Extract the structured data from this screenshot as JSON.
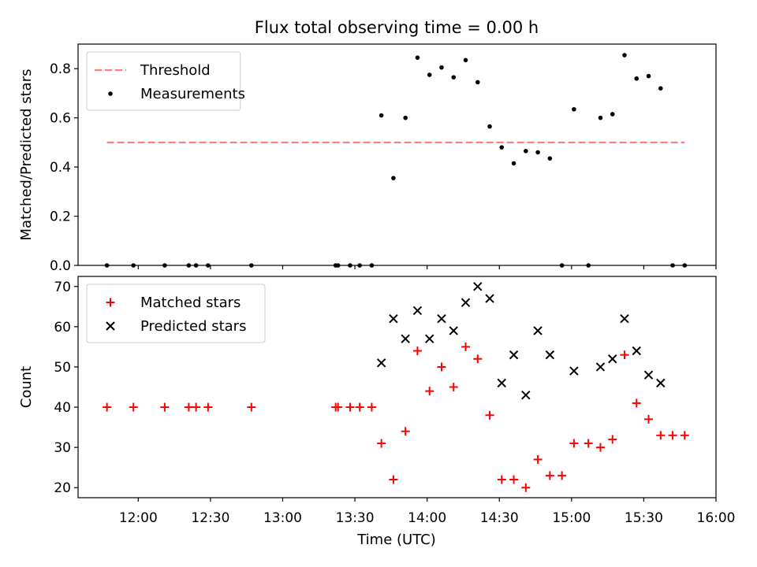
{
  "chart_data": {
    "type": "scatter",
    "title": "Flux total observing time = 0.00 h",
    "xlabel": "Time (UTC)",
    "x_tick_labels": [
      "12:00",
      "12:30",
      "13:00",
      "13:30",
      "14:00",
      "14:30",
      "15:00",
      "15:30",
      "16:00"
    ],
    "x_ticks_minutes": [
      720,
      750,
      780,
      810,
      840,
      870,
      900,
      930,
      960
    ],
    "xlim_minutes": [
      695,
      960
    ],
    "panels": [
      {
        "ylabel": "Matched/Predicted stars",
        "ylim": [
          0,
          0.9
        ],
        "yticks": [
          0.0,
          0.2,
          0.4,
          0.6,
          0.8
        ],
        "ytick_labels": [
          "0.0",
          "0.2",
          "0.4",
          "0.6",
          "0.8"
        ],
        "legend_position": "top-left",
        "threshold": {
          "name": "Threshold",
          "value": 0.5,
          "x_range": [
            707,
            947
          ],
          "color": "#ff7f7f"
        },
        "series": [
          {
            "name": "Measurements",
            "marker": "dot",
            "color": "#000000",
            "x": [
              707,
              718,
              731,
              741,
              744,
              749,
              767,
              802,
              803,
              808,
              812,
              817,
              821,
              826,
              831,
              836,
              841,
              846,
              851,
              856,
              861,
              866,
              871,
              876,
              881,
              886,
              891,
              896,
              901,
              907,
              912,
              917,
              922,
              927,
              932,
              937,
              942,
              947
            ],
            "y": [
              0,
              0,
              0,
              0,
              0,
              0,
              0,
              0,
              0,
              0,
              0,
              0,
              0.61,
              0.355,
              0.6,
              0.845,
              0.775,
              0.805,
              0.765,
              0.835,
              0.745,
              0.565,
              0.48,
              0.415,
              0.465,
              0.46,
              0.435,
              0,
              0.635,
              0,
              0.6,
              0.615,
              0.855,
              0.76,
              0.77,
              0.72,
              0,
              0
            ]
          }
        ]
      },
      {
        "ylabel": "Count",
        "ylim": [
          17.5,
          72.5
        ],
        "yticks": [
          20,
          30,
          40,
          50,
          60,
          70
        ],
        "ytick_labels": [
          "20",
          "30",
          "40",
          "50",
          "60",
          "70"
        ],
        "legend_position": "top-left",
        "series": [
          {
            "name": "Matched stars",
            "marker": "plus",
            "color": "#ff0000",
            "x": [
              707,
              718,
              731,
              741,
              744,
              749,
              767,
              802,
              803,
              808,
              812,
              817,
              821,
              826,
              831,
              836,
              841,
              846,
              851,
              856,
              861,
              866,
              871,
              876,
              881,
              886,
              891,
              896,
              901,
              907,
              912,
              917,
              922,
              927,
              932,
              937,
              942,
              947
            ],
            "y": [
              40,
              40,
              40,
              40,
              40,
              40,
              40,
              40,
              40,
              40,
              40,
              40,
              31,
              22,
              34,
              54,
              44,
              50,
              45,
              55,
              52,
              38,
              22,
              22,
              20,
              27,
              23,
              23,
              31,
              31,
              30,
              32,
              53,
              41,
              37,
              33,
              33,
              33
            ]
          },
          {
            "name": "Predicted stars",
            "marker": "x",
            "color": "#000000",
            "x": [
              821,
              826,
              831,
              836,
              841,
              846,
              851,
              856,
              861,
              866,
              871,
              876,
              881,
              886,
              891,
              901,
              912,
              917,
              922,
              927,
              932,
              937
            ],
            "y": [
              51,
              62,
              57,
              64,
              57,
              62,
              59,
              66,
              70,
              67,
              46,
              53,
              43,
              59,
              53,
              49,
              50,
              52,
              62,
              54,
              48,
              46
            ]
          }
        ]
      }
    ]
  }
}
